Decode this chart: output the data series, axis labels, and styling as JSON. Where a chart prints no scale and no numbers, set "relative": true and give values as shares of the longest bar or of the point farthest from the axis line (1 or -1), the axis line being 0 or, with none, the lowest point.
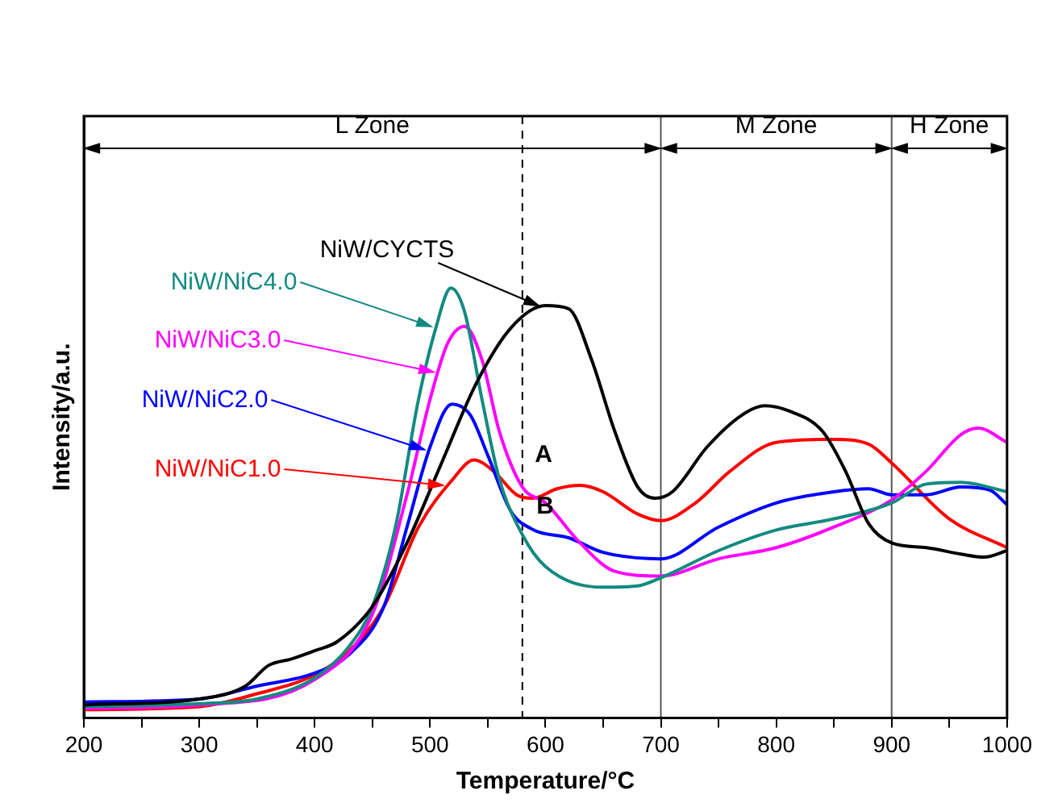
{
  "chart_data": {
    "type": "line",
    "relative": true,
    "xlabel": "Temperature/°C",
    "ylabel": "Intensity/a.u.",
    "xlim": [
      200,
      1000
    ],
    "xticks": [
      200,
      {
        "value": 250,
        "label": null
      },
      300,
      {
        "value": 350,
        "label": null
      },
      400,
      {
        "value": 450,
        "label": null
      },
      500,
      {
        "value": 550,
        "label": null
      },
      600,
      {
        "value": 650,
        "label": null
      },
      700,
      {
        "value": 750,
        "label": null
      },
      800,
      {
        "value": 850,
        "label": null
      },
      900,
      {
        "value": 950,
        "label": null
      },
      1000
    ],
    "tick_labels": "x",
    "grid": false,
    "marker": "none",
    "line_style": "solid",
    "ref_lines": [
      {
        "axis": "x",
        "value": 700,
        "color": "#555555"
      },
      {
        "axis": "x",
        "value": 900,
        "color": "#555555"
      },
      {
        "axis": "x",
        "value": 580,
        "color": "#000000",
        "line_style": "dashed"
      }
    ],
    "annotations": [
      "L Zone",
      "M Zone",
      "H Zone",
      "A",
      "B"
    ],
    "series": [
      {
        "name": "NiW/CYCTS",
        "color": "#000000",
        "x": [
          200,
          300,
          340,
          360,
          380,
          400,
          420,
          450,
          480,
          510,
          540,
          570,
          600,
          620,
          640,
          660,
          680,
          695,
          710,
          740,
          770,
          790,
          810,
          840,
          860,
          880,
          900,
          930,
          960,
          980,
          1000
        ],
        "values": [
          0.03,
          0.044,
          0.074,
          0.122,
          0.137,
          0.156,
          0.178,
          0.259,
          0.407,
          0.593,
          0.778,
          0.907,
          0.959,
          0.952,
          0.833,
          0.667,
          0.537,
          0.511,
          0.526,
          0.63,
          0.704,
          0.726,
          0.715,
          0.667,
          0.574,
          0.452,
          0.407,
          0.396,
          0.381,
          0.374,
          0.389
        ]
      },
      {
        "name": "NiW/NiC4.0",
        "color": "#138a80",
        "x": [
          200,
          300,
          350,
          400,
          430,
          450,
          470,
          490,
          505,
          518,
          530,
          545,
          560,
          580,
          600,
          650,
          680,
          700,
          750,
          800,
          850,
          900,
          930,
          960,
          1000
        ],
        "values": [
          0.026,
          0.033,
          0.044,
          0.093,
          0.167,
          0.259,
          0.444,
          0.741,
          0.907,
          1,
          0.944,
          0.741,
          0.556,
          0.426,
          0.352,
          0.304,
          0.307,
          0.326,
          0.389,
          0.437,
          0.463,
          0.5,
          0.544,
          0.548,
          0.526
        ]
      },
      {
        "name": "NiW/NiC3.0",
        "color": "#ff00ff",
        "x": [
          200,
          300,
          400,
          450,
          480,
          500,
          515,
          530,
          545,
          560,
          580,
          600,
          630,
          660,
          700,
          750,
          800,
          850,
          900,
          930,
          960,
          975,
          1000
        ],
        "values": [
          0.022,
          0.03,
          0.089,
          0.241,
          0.519,
          0.741,
          0.87,
          0.911,
          0.833,
          0.667,
          0.537,
          0.5,
          0.407,
          0.341,
          0.33,
          0.37,
          0.396,
          0.444,
          0.507,
          0.574,
          0.659,
          0.674,
          0.641
        ]
      },
      {
        "name": "NiW/NiC2.0",
        "color": "#0000ff",
        "x": [
          200,
          300,
          350,
          400,
          430,
          460,
          480,
          500,
          519,
          535,
          550,
          570,
          590,
          620,
          650,
          700,
          750,
          800,
          850,
          880,
          900,
          930,
          960,
          985,
          1000
        ],
        "values": [
          0.037,
          0.044,
          0.074,
          0.104,
          0.148,
          0.259,
          0.444,
          0.63,
          0.73,
          0.704,
          0.611,
          0.481,
          0.437,
          0.419,
          0.385,
          0.37,
          0.444,
          0.5,
          0.526,
          0.533,
          0.519,
          0.519,
          0.537,
          0.53,
          0.496
        ]
      },
      {
        "name": "NiW/NiC1.0",
        "color": "#ff0000",
        "x": [
          200,
          300,
          350,
          400,
          430,
          460,
          490,
          520,
          538,
          555,
          575,
          589,
          610,
          630,
          650,
          680,
          700,
          730,
          760,
          800,
          850,
          880,
          900,
          950,
          1000
        ],
        "values": [
          0.019,
          0.026,
          0.056,
          0.1,
          0.156,
          0.259,
          0.444,
          0.556,
          0.6,
          0.574,
          0.519,
          0.511,
          0.533,
          0.541,
          0.526,
          0.474,
          0.459,
          0.5,
          0.574,
          0.641,
          0.648,
          0.637,
          0.593,
          0.463,
          0.396
        ]
      }
    ]
  }
}
